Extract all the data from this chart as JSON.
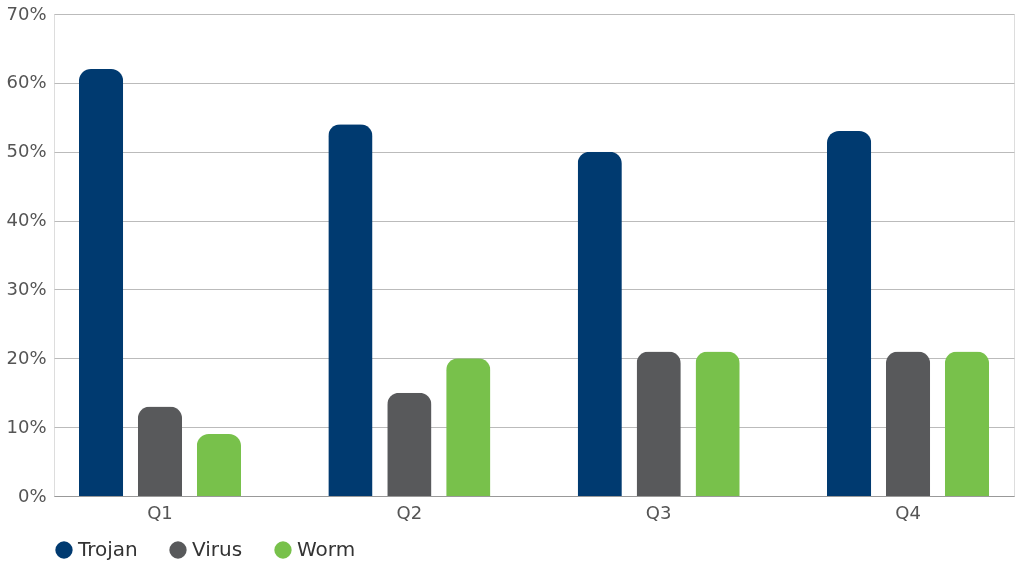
{
  "chart_data": {
    "type": "bar",
    "categories": [
      "Q1",
      "Q2",
      "Q3",
      "Q4"
    ],
    "series": [
      {
        "name": "Trojan",
        "color": "#003a70",
        "values": [
          62,
          54,
          50,
          53
        ]
      },
      {
        "name": "Virus",
        "color": "#58595b",
        "values": [
          13,
          15,
          21,
          21
        ]
      },
      {
        "name": "Worm",
        "color": "#78c14b",
        "values": [
          9,
          20,
          21,
          21
        ]
      }
    ],
    "ylim": [
      0,
      70
    ],
    "yticks": [
      {
        "value": 0,
        "label": "0%"
      },
      {
        "value": 10,
        "label": "10%"
      },
      {
        "value": 20,
        "label": "20%"
      },
      {
        "value": 30,
        "label": "30%"
      },
      {
        "value": 40,
        "label": "40%"
      },
      {
        "value": 50,
        "label": "50%"
      },
      {
        "value": 60,
        "label": "60%"
      },
      {
        "value": 70,
        "label": "70%"
      }
    ],
    "grid": "y",
    "legend": "bottom"
  }
}
